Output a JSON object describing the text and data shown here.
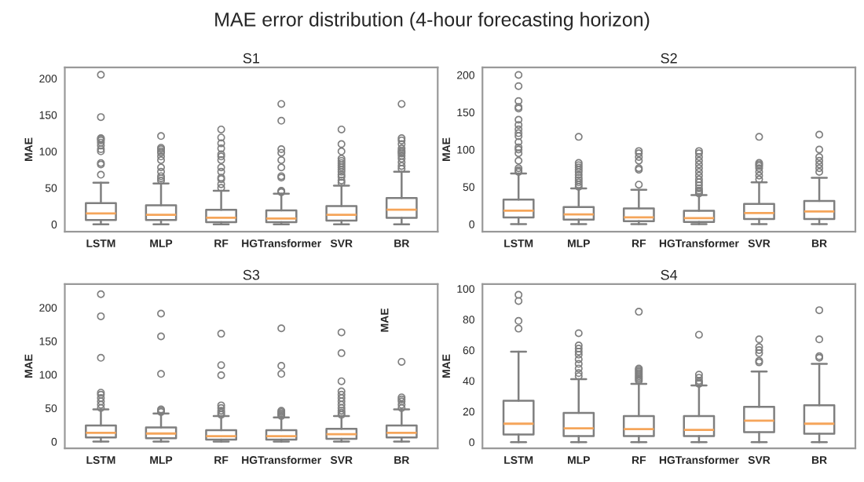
{
  "chart_data": [
    {
      "type": "box",
      "title": "S1",
      "ylabel": "MAE",
      "categories": [
        "LSTM",
        "MLP",
        "RF",
        "HGTransformer",
        "SVR",
        "BR"
      ],
      "ylim": [
        -10,
        215
      ],
      "yticks": [
        0,
        50,
        100,
        150,
        200
      ],
      "color": "#7f7f7f",
      "annotations": [
        "MAE error distribution (4-hour forecasting horizon)"
      ],
      "boxes": [
        {
          "low": 0,
          "q1": 6,
          "median": 15,
          "q3": 29,
          "high": 57,
          "outliers": [
            68,
            82,
            84,
            100,
            103,
            108,
            112,
            115,
            117,
            118,
            147,
            205
          ]
        },
        {
          "low": 0,
          "q1": 6,
          "median": 13,
          "q3": 26,
          "high": 56,
          "outliers": [
            60,
            63,
            66,
            72,
            78,
            88,
            93,
            98,
            100,
            103,
            105,
            121
          ]
        },
        {
          "low": 0,
          "q1": 3,
          "median": 9,
          "q3": 20,
          "high": 46,
          "outliers": [
            50,
            55,
            62,
            64,
            72,
            78,
            88,
            93,
            96,
            104,
            111,
            119,
            130
          ]
        },
        {
          "low": 0,
          "q1": 3,
          "median": 8,
          "q3": 19,
          "high": 42,
          "outliers": [
            44,
            45,
            46,
            64,
            66,
            78,
            88,
            98,
            103,
            142,
            165
          ]
        },
        {
          "low": 0,
          "q1": 5,
          "median": 13,
          "q3": 25,
          "high": 53,
          "outliers": [
            57,
            60,
            65,
            68,
            72,
            75,
            78,
            81,
            84,
            87,
            90,
            100,
            110,
            130
          ]
        },
        {
          "low": 0,
          "q1": 9,
          "median": 20,
          "q3": 36,
          "high": 72,
          "outliers": [
            76,
            80,
            85,
            90,
            94,
            97,
            99,
            101,
            104,
            110,
            115,
            118,
            165
          ]
        }
      ]
    },
    {
      "type": "box",
      "title": "S2",
      "ylabel": "MAE",
      "categories": [
        "LSTM",
        "MLP",
        "RF",
        "HGTransformer",
        "SVR",
        "BR"
      ],
      "ylim": [
        -10,
        210
      ],
      "yticks": [
        0,
        50,
        100,
        150,
        200
      ],
      "color": "#7f7f7f",
      "boxes": [
        {
          "low": 0,
          "q1": 9,
          "median": 18,
          "q3": 33,
          "high": 68,
          "outliers": [
            70,
            72,
            75,
            85,
            95,
            100,
            103,
            110,
            118,
            122,
            127,
            133,
            140,
            155,
            157,
            165,
            185,
            200
          ]
        },
        {
          "low": 0,
          "q1": 6,
          "median": 13,
          "q3": 23,
          "high": 48,
          "outliers": [
            50,
            53,
            56,
            59,
            62,
            66,
            70,
            73,
            76,
            79,
            82,
            117
          ]
        },
        {
          "low": 0,
          "q1": 4,
          "median": 9,
          "q3": 21,
          "high": 46,
          "outliers": [
            53,
            73,
            75,
            85,
            90,
            95,
            98
          ]
        },
        {
          "low": 0,
          "q1": 3,
          "median": 8,
          "q3": 18,
          "high": 39,
          "outliers": [
            41,
            43,
            45,
            48,
            52,
            56,
            60,
            65,
            70,
            75,
            80,
            85,
            90,
            95,
            98
          ]
        },
        {
          "low": 0,
          "q1": 7,
          "median": 15,
          "q3": 27,
          "high": 56,
          "outliers": [
            60,
            65,
            70,
            75,
            78,
            80,
            82,
            117
          ]
        },
        {
          "low": 0,
          "q1": 7,
          "median": 17,
          "q3": 31,
          "high": 62,
          "outliers": [
            70,
            75,
            80,
            85,
            90,
            100,
            120
          ]
        }
      ]
    },
    {
      "type": "box",
      "title": "S3",
      "ylabel": "MAE",
      "categories": [
        "LSTM",
        "MLP",
        "RF",
        "HGTransformer",
        "SVR",
        "BR"
      ],
      "ylim": [
        -10,
        235
      ],
      "yticks": [
        0,
        50,
        100,
        150,
        200
      ],
      "color": "#7f7f7f",
      "annotations": [
        "MAE"
      ],
      "boxes": [
        {
          "low": 0,
          "q1": 6,
          "median": 13,
          "q3": 24,
          "high": 48,
          "outliers": [
            50,
            55,
            60,
            65,
            70,
            73,
            125,
            187,
            220
          ]
        },
        {
          "low": 0,
          "q1": 5,
          "median": 12,
          "q3": 21,
          "high": 42,
          "outliers": [
            44,
            46,
            48,
            101,
            157,
            191
          ]
        },
        {
          "low": 0,
          "q1": 3,
          "median": 8,
          "q3": 17,
          "high": 38,
          "outliers": [
            40,
            43,
            46,
            50,
            54,
            99,
            114,
            161
          ]
        },
        {
          "low": 0,
          "q1": 3,
          "median": 8,
          "q3": 17,
          "high": 36,
          "outliers": [
            38,
            40,
            42,
            44,
            46,
            101,
            113,
            169
          ]
        },
        {
          "low": 0,
          "q1": 4,
          "median": 11,
          "q3": 19,
          "high": 38,
          "outliers": [
            40,
            43,
            46,
            50,
            55,
            60,
            65,
            70,
            75,
            90,
            132,
            163
          ]
        },
        {
          "low": 0,
          "q1": 6,
          "median": 13,
          "q3": 24,
          "high": 48,
          "outliers": [
            50,
            55,
            60,
            63,
            66,
            119
          ]
        }
      ]
    },
    {
      "type": "box",
      "title": "S4",
      "ylabel": "MAE",
      "categories": [
        "LSTM",
        "MLP",
        "RF",
        "HGTransformer",
        "SVR",
        "BR"
      ],
      "ylim": [
        -4,
        103
      ],
      "yticks": [
        0,
        20,
        40,
        60,
        80,
        100
      ],
      "color": "#7f7f7f",
      "boxes": [
        {
          "low": 0,
          "q1": 5,
          "median": 12,
          "q3": 27,
          "high": 59,
          "outliers": [
            74,
            79,
            92,
            96
          ]
        },
        {
          "low": 0,
          "q1": 4,
          "median": 9,
          "q3": 19,
          "high": 41,
          "outliers": [
            43,
            45,
            48,
            51,
            54,
            57,
            59,
            61,
            63,
            71
          ]
        },
        {
          "low": 0,
          "q1": 4,
          "median": 8.5,
          "q3": 17,
          "high": 38,
          "outliers": [
            40,
            41,
            42,
            43,
            44,
            45,
            46,
            47,
            48,
            85
          ]
        },
        {
          "low": 0,
          "q1": 4,
          "median": 8,
          "q3": 17,
          "high": 37,
          "outliers": [
            38,
            39,
            40,
            42,
            44,
            70
          ]
        },
        {
          "low": 0,
          "q1": 6.5,
          "median": 14,
          "q3": 23,
          "high": 46,
          "outliers": [
            52,
            53,
            58,
            60,
            62,
            67
          ]
        },
        {
          "low": 0,
          "q1": 5.5,
          "median": 12,
          "q3": 24,
          "high": 51,
          "outliers": [
            55,
            56,
            67,
            86
          ]
        }
      ]
    }
  ]
}
